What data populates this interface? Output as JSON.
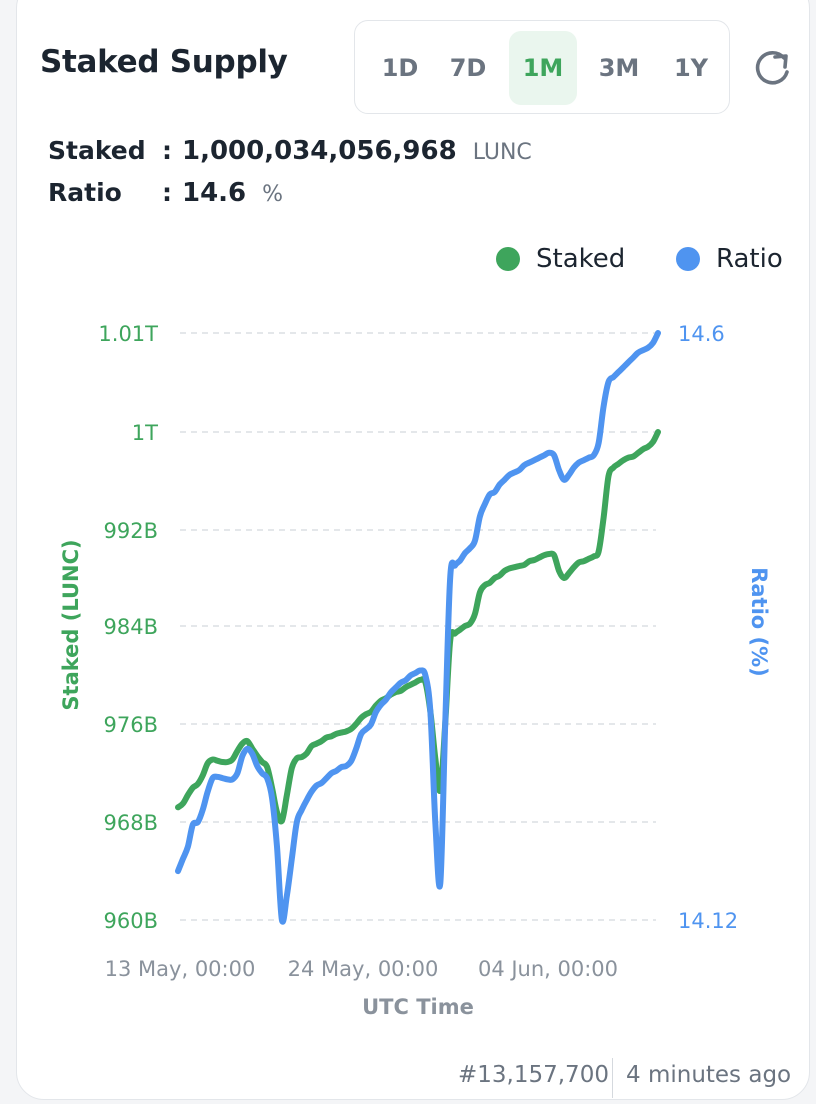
{
  "header": {
    "title": "Staked Supply",
    "ranges": [
      "1D",
      "7D",
      "1M",
      "3M",
      "1Y"
    ],
    "active_range": "1M"
  },
  "stats": {
    "staked_label": "Staked",
    "staked_value": "1,000,034,056,968",
    "staked_unit": "LUNC",
    "ratio_label": "Ratio",
    "ratio_value": "14.6",
    "ratio_unit": "%",
    "separator": ":"
  },
  "colors": {
    "staked": "#3ea55c",
    "ratio": "#4f94f0"
  },
  "footer": {
    "block": "#13,157,700",
    "updated": "4 minutes ago"
  },
  "chart_data": {
    "type": "line",
    "xlabel": "UTC Time",
    "x_tick_labels": [
      "13 May, 00:00",
      "24 May, 00:00",
      "04 Jun, 00:00"
    ],
    "y_left": {
      "label": "Staked (LUNC)",
      "ticks": [
        960,
        968,
        976,
        984,
        992,
        1000,
        1010
      ],
      "tick_labels": [
        "960B",
        "968B",
        "976B",
        "984B",
        "992B",
        "1T",
        "1.01T"
      ],
      "unit": "billion LUNC"
    },
    "y_right": {
      "label": "Ratio (%)",
      "ticks": [
        14.12,
        14.6
      ],
      "tick_labels": [
        "14.12",
        "14.6"
      ],
      "range": [
        14.12,
        14.6
      ]
    },
    "legend": {
      "position": "top-right",
      "entries": [
        "Staked",
        "Ratio"
      ]
    },
    "grid": true,
    "series": [
      {
        "name": "Staked",
        "axis": "left",
        "values": [
          969.2,
          969.5,
          970.2,
          970.8,
          971.1,
          971.8,
          972.8,
          973.1,
          973.0,
          972.9,
          972.9,
          973.1,
          973.8,
          974.4,
          974.6,
          974.0,
          973.4,
          972.9,
          972.5,
          970.8,
          968.8,
          968.1,
          970.2,
          972.4,
          973.2,
          973.3,
          973.6,
          974.2,
          974.4,
          974.6,
          974.9,
          975.0,
          975.2,
          975.3,
          975.4,
          975.6,
          976.0,
          976.5,
          976.8,
          977.0,
          977.5,
          977.9,
          978.1,
          978.4,
          978.6,
          978.7,
          979.0,
          979.2,
          979.4,
          979.6,
          979.4,
          977.0,
          973.2,
          970.6,
          976.0,
          982.8,
          983.4,
          983.7,
          984.0,
          984.2,
          985.0,
          986.8,
          987.4,
          987.6,
          988.0,
          988.2,
          988.6,
          988.8,
          988.9,
          989.0,
          989.1,
          989.4,
          989.5,
          989.7,
          989.9,
          990.0,
          989.9,
          988.6,
          988.0,
          988.4,
          988.9,
          989.3,
          989.4,
          989.6,
          989.8,
          990.2,
          993.0,
          996.4,
          997.1,
          997.4,
          997.7,
          997.9,
          998.0,
          998.3,
          998.6,
          998.8,
          999.2,
          1000.0
        ]
      },
      {
        "name": "Ratio",
        "axis": "right",
        "values": [
          14.16,
          14.17,
          14.18,
          14.198,
          14.2,
          14.21,
          14.225,
          14.236,
          14.237,
          14.236,
          14.235,
          14.235,
          14.24,
          14.254,
          14.26,
          14.256,
          14.246,
          14.24,
          14.236,
          14.22,
          14.18,
          14.12,
          14.14,
          14.17,
          14.2,
          14.21,
          14.218,
          14.225,
          14.23,
          14.232,
          14.236,
          14.24,
          14.242,
          14.245,
          14.246,
          14.25,
          14.26,
          14.272,
          14.276,
          14.28,
          14.29,
          14.296,
          14.3,
          14.306,
          14.31,
          14.314,
          14.316,
          14.32,
          14.322,
          14.324,
          14.32,
          14.29,
          14.2,
          14.15,
          14.28,
          14.4,
          14.41,
          14.414,
          14.42,
          14.424,
          14.43,
          14.45,
          14.46,
          14.468,
          14.47,
          14.476,
          14.48,
          14.484,
          14.486,
          14.488,
          14.492,
          14.494,
          14.496,
          14.498,
          14.5,
          14.502,
          14.5,
          14.488,
          14.48,
          14.484,
          14.49,
          14.494,
          14.496,
          14.498,
          14.5,
          14.51,
          14.54,
          14.56,
          14.564,
          14.568,
          14.572,
          14.576,
          14.58,
          14.584,
          14.586,
          14.588,
          14.592,
          14.6
        ]
      }
    ]
  }
}
